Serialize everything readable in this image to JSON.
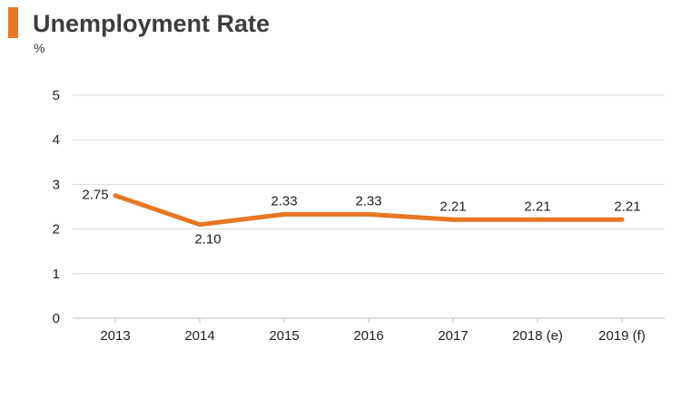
{
  "header": {
    "title": "Unemployment Rate",
    "unit": "%"
  },
  "colors": {
    "accent": "#e87722",
    "line": "#e87722",
    "grid": "#d9d9d9",
    "axis": "#bfbfbf"
  },
  "chart_data": {
    "type": "line",
    "title": "Unemployment Rate",
    "ylabel": "%",
    "xlabel": "",
    "categories": [
      "2013",
      "2014",
      "2015",
      "2016",
      "2017",
      "2018 (e)",
      "2019 (f)"
    ],
    "series": [
      {
        "values": [
          2.75,
          2.1,
          2.33,
          2.33,
          2.21,
          2.21,
          2.21
        ],
        "labels": [
          "2.75",
          "2.10",
          "2.33",
          "2.33",
          "2.21",
          "2.21",
          "2.21"
        ]
      }
    ],
    "ylim": [
      0,
      5
    ],
    "yticks": [
      "0",
      "1",
      "2",
      "3",
      "4",
      "5"
    ],
    "grid": true,
    "legend": "none"
  }
}
